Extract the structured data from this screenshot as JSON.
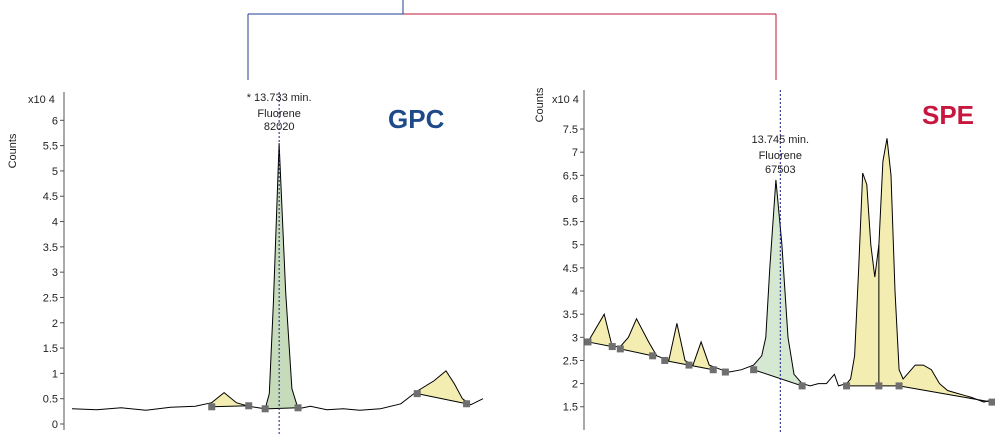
{
  "connector": {
    "left_color": "#1f3f8f",
    "right_color": "#c0143c"
  },
  "chart_data": [
    {
      "type": "area",
      "title": "GPC",
      "title_color": "#1e4a8a",
      "ylabel": "Counts",
      "y_multiplier": "x10 4",
      "ylim": [
        0,
        6.5
      ],
      "ticks": [
        "0",
        "0.5",
        "1",
        "1.5",
        "2",
        "2.5",
        "3",
        "3.5",
        "4",
        "4.5",
        "5",
        "5.5",
        "6"
      ],
      "x_range": [
        0,
        100
      ],
      "marker_x": 50.4,
      "annotation": [
        "* 13.733 min.",
        "Fluorene",
        "82020"
      ],
      "trace": [
        [
          0,
          0.3
        ],
        [
          6,
          0.28
        ],
        [
          12,
          0.32
        ],
        [
          18,
          0.27
        ],
        [
          24,
          0.33
        ],
        [
          30,
          0.35
        ],
        [
          34,
          0.42
        ],
        [
          37,
          0.62
        ],
        [
          40,
          0.42
        ],
        [
          43,
          0.35
        ],
        [
          47,
          0.3
        ],
        [
          48,
          0.6
        ],
        [
          49,
          2.4
        ],
        [
          50.4,
          5.55
        ],
        [
          52,
          2.6
        ],
        [
          53.5,
          0.7
        ],
        [
          55,
          0.3
        ],
        [
          58,
          0.35
        ],
        [
          62,
          0.28
        ],
        [
          66,
          0.3
        ],
        [
          70,
          0.27
        ],
        [
          75,
          0.3
        ],
        [
          80,
          0.4
        ],
        [
          84,
          0.65
        ],
        [
          88,
          0.85
        ],
        [
          91,
          1.05
        ],
        [
          93,
          0.8
        ],
        [
          95,
          0.5
        ],
        [
          97,
          0.38
        ],
        [
          100,
          0.5
        ]
      ],
      "peaks": [
        {
          "color": "#f3edb1",
          "x0": 34,
          "x1": 43,
          "b0": 0.34,
          "b1": 0.36
        },
        {
          "color": "#c5dbb9",
          "x0": 47,
          "x1": 55,
          "b0": 0.3,
          "b1": 0.32
        },
        {
          "color": "#f3edb1",
          "x0": 84,
          "x1": 96,
          "b0": 0.6,
          "b1": 0.4
        }
      ],
      "points": [
        [
          34,
          0.34
        ],
        [
          43,
          0.36
        ],
        [
          47,
          0.3
        ],
        [
          55,
          0.32
        ],
        [
          84,
          0.6
        ],
        [
          96,
          0.4
        ]
      ]
    },
    {
      "type": "area",
      "title": "SPE",
      "title_color": "#c8173f",
      "ylabel": "Counts",
      "y_multiplier": "x10 4",
      "ylim": [
        1.3,
        8.3
      ],
      "ticks": [
        "1.5",
        "2",
        "2.5",
        "3",
        "3.5",
        "4",
        "4.5",
        "5",
        "5.5",
        "6",
        "6.5",
        "7",
        "7.5"
      ],
      "x_range": [
        0,
        100
      ],
      "marker_x": 47.6,
      "annotation": [
        "13.745 min.",
        "Fluorene",
        "67503"
      ],
      "trace": [
        [
          0,
          2.9
        ],
        [
          4,
          3.5
        ],
        [
          6,
          2.8
        ],
        [
          8,
          2.8
        ],
        [
          10,
          3.0
        ],
        [
          12,
          3.4
        ],
        [
          15,
          2.9
        ],
        [
          17,
          2.6
        ],
        [
          20,
          2.5
        ],
        [
          22,
          3.3
        ],
        [
          24,
          2.5
        ],
        [
          26,
          2.4
        ],
        [
          28,
          2.9
        ],
        [
          30,
          2.4
        ],
        [
          33,
          2.3
        ],
        [
          35,
          2.25
        ],
        [
          38,
          2.3
        ],
        [
          41,
          2.4
        ],
        [
          43,
          2.6
        ],
        [
          44,
          3.0
        ],
        [
          45,
          4.5
        ],
        [
          46.5,
          6.4
        ],
        [
          48,
          5.0
        ],
        [
          49.5,
          3.0
        ],
        [
          51,
          2.2
        ],
        [
          53,
          2.0
        ],
        [
          55,
          1.95
        ],
        [
          57,
          2.0
        ],
        [
          59,
          2.0
        ],
        [
          61,
          2.2
        ],
        [
          62,
          1.95
        ],
        [
          64,
          2.0
        ],
        [
          65,
          2.1
        ],
        [
          66,
          2.6
        ],
        [
          67,
          4.5
        ],
        [
          68,
          6.55
        ],
        [
          69,
          6.3
        ],
        [
          70,
          5.0
        ],
        [
          71,
          4.3
        ],
        [
          72,
          5.0
        ],
        [
          73,
          6.8
        ],
        [
          74,
          7.3
        ],
        [
          75,
          6.5
        ],
        [
          76,
          4.0
        ],
        [
          77,
          2.3
        ],
        [
          78,
          2.1
        ],
        [
          79,
          2.2
        ],
        [
          81,
          2.4
        ],
        [
          83,
          2.4
        ],
        [
          85,
          2.3
        ],
        [
          87,
          2.0
        ],
        [
          89,
          1.85
        ],
        [
          91,
          1.8
        ],
        [
          93,
          1.75
        ],
        [
          95,
          1.7
        ],
        [
          98,
          1.6
        ],
        [
          100,
          1.65
        ]
      ],
      "peaks": [
        {
          "color": "#f3edb1",
          "x0": 0,
          "x1": 6,
          "b0": 2.9,
          "b1": 2.8
        },
        {
          "color": "#f3edb1",
          "x0": 8,
          "x1": 16,
          "b0": 2.75,
          "b1": 2.6
        },
        {
          "color": "#f3edb1",
          "x0": 19,
          "x1": 25,
          "b0": 2.5,
          "b1": 2.4
        },
        {
          "color": "#f3edb1",
          "x0": 25,
          "x1": 31,
          "b0": 2.4,
          "b1": 2.3
        },
        {
          "color": "#d5e8d2",
          "x0": 41,
          "x1": 53,
          "b0": 2.3,
          "b1": 1.95
        },
        {
          "color": "#f3edb1",
          "x0": 64,
          "x1": 72,
          "b0": 1.95,
          "b1": 1.95
        },
        {
          "color": "#f3edb1",
          "x0": 72,
          "x1": 77,
          "b0": 1.95,
          "b1": 1.95
        },
        {
          "color": "#f3edb1",
          "x0": 77,
          "x1": 100,
          "b0": 1.95,
          "b1": 1.6
        }
      ],
      "points": [
        [
          0,
          2.9
        ],
        [
          6,
          2.8
        ],
        [
          8,
          2.75
        ],
        [
          16,
          2.6
        ],
        [
          19,
          2.5
        ],
        [
          25,
          2.4
        ],
        [
          31,
          2.3
        ],
        [
          34,
          2.25
        ],
        [
          41,
          2.3
        ],
        [
          53,
          1.95
        ],
        [
          64,
          1.95
        ],
        [
          72,
          1.95
        ],
        [
          77,
          1.95
        ],
        [
          100,
          1.6
        ]
      ]
    }
  ]
}
